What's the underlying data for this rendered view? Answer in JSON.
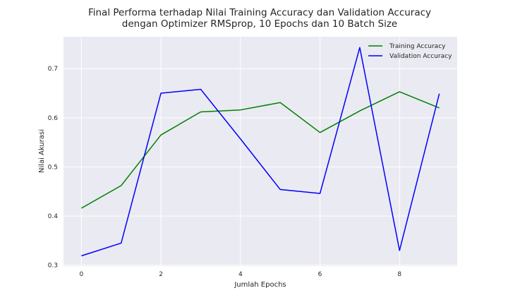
{
  "chart_data": {
    "type": "line",
    "title": "Final Performa terhadap Nilai Training Accuracy dan Validation Accuracy",
    "subtitle": "dengan Optimizer RMSprop, 10 Epochs dan 10 Batch Size",
    "xlabel": "Jumlah Epochs",
    "ylabel": "Nilai Akurasi",
    "x": [
      0,
      1,
      2,
      3,
      4,
      5,
      6,
      7,
      8,
      9
    ],
    "xlim": [
      -0.45,
      9.45
    ],
    "ylim": [
      0.298,
      0.765
    ],
    "xticks": [
      0,
      2,
      4,
      6,
      8
    ],
    "yticks": [
      0.3,
      0.4,
      0.5,
      0.6,
      0.7
    ],
    "grid": true,
    "legend_position": "top-right",
    "series": [
      {
        "name": "Training Accuracy",
        "color": "#008000",
        "values": [
          0.416,
          0.462,
          0.565,
          0.612,
          0.616,
          0.631,
          0.57,
          0.614,
          0.653,
          0.62
        ]
      },
      {
        "name": "Validation Accuracy",
        "color": "#0000ff",
        "values": [
          0.319,
          0.345,
          0.65,
          0.658,
          0.557,
          0.454,
          0.446,
          0.743,
          0.33,
          0.649
        ]
      }
    ]
  }
}
